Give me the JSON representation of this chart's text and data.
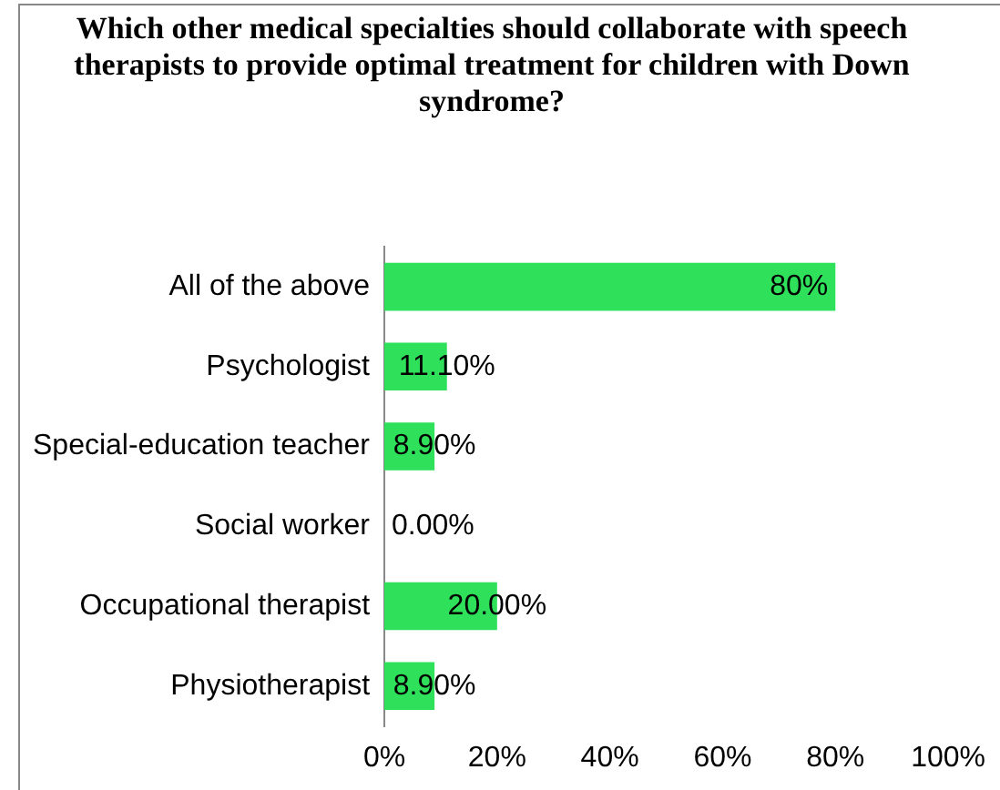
{
  "chart_data": {
    "type": "bar",
    "orientation": "horizontal",
    "title": "Which other medical specialties should collaborate with speech therapists to provide optimal treatment for children  with Down syndrome?",
    "categories": [
      "All of the above",
      "Psychologist",
      "Special-education teacher",
      "Social worker",
      "Occupational therapist",
      "Physiotherapist"
    ],
    "values": [
      80,
      11.1,
      8.9,
      0,
      20,
      8.9
    ],
    "value_labels": [
      "80%",
      "11.10%",
      "8.90%",
      "0.00%",
      "20.00%",
      "8.90%"
    ],
    "color": "#2ee05a",
    "xlim": [
      0,
      100
    ],
    "xticks": [
      {
        "value": 0,
        "label": "0%"
      },
      {
        "value": 20,
        "label": "20%"
      },
      {
        "value": 40,
        "label": "40%"
      },
      {
        "value": 60,
        "label": "60%"
      },
      {
        "value": 80,
        "label": "80%"
      },
      {
        "value": 100,
        "label": "100%"
      }
    ],
    "grid": false,
    "legend": false
  }
}
